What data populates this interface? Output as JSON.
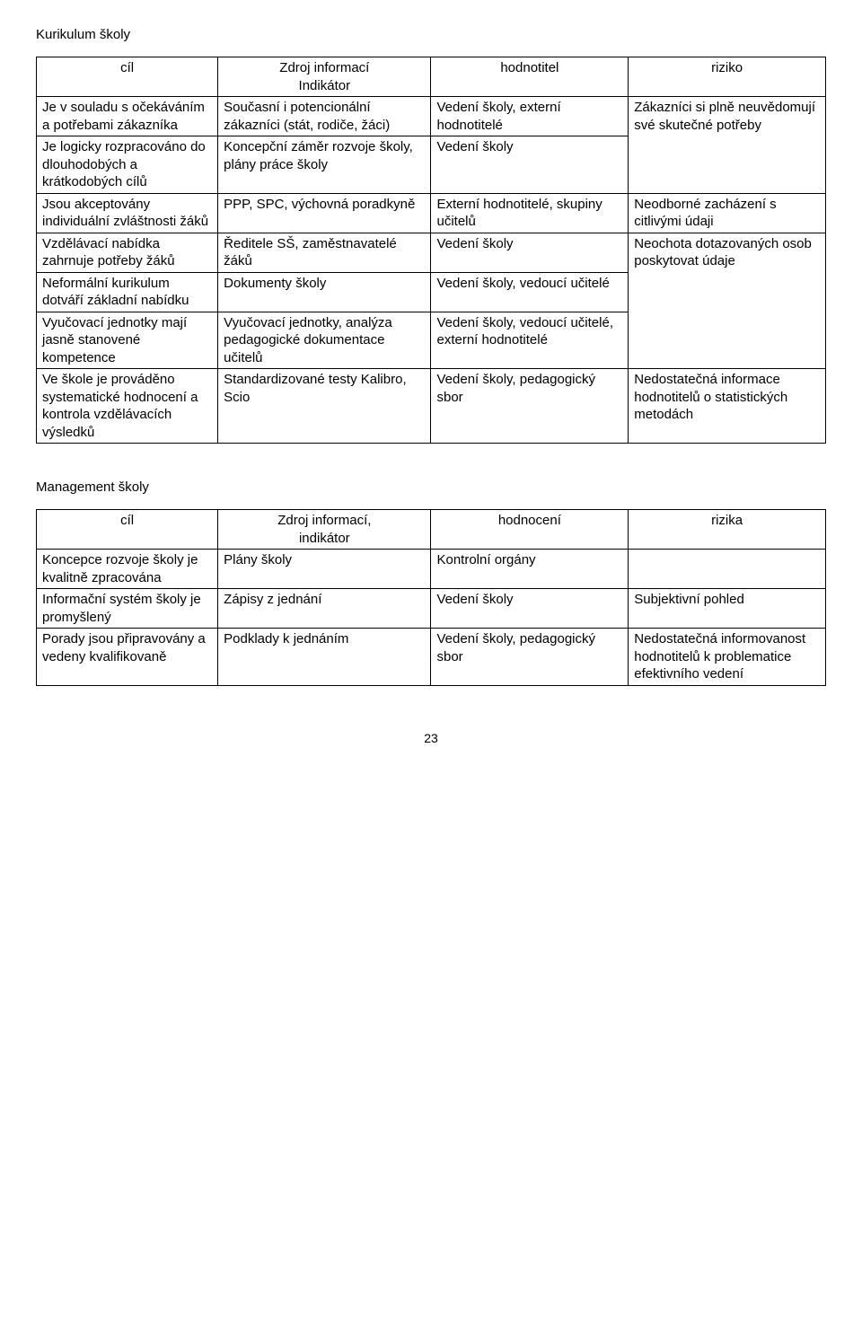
{
  "section1": {
    "title": "Kurikulum školy",
    "headers": [
      "cíl",
      "Zdroj informací\nIndikátor",
      "hodnotitel",
      "riziko"
    ],
    "rows": [
      {
        "c1": "Je v souladu s očekáváním a potřebami zákazníka",
        "c2": "Současní i potencionální zákazníci (stát, rodiče, žáci)",
        "c3": "Vedení školy, externí hodnotitelé",
        "c4": "Zákazníci si plně neuvědomují své skutečné potřeby"
      },
      {
        "c1": "Je logicky rozpracováno do dlouhodobých a krátkodobých cílů",
        "c2": "Koncepční záměr rozvoje školy, plány práce školy",
        "c3": "Vedení školy",
        "c4": ""
      },
      {
        "c1": "Jsou akceptovány individuální zvláštnosti žáků",
        "c2": "PPP, SPC, výchovná poradkyně",
        "c3": "Externí hodnotitelé, skupiny učitelů",
        "c4": "Neodborné zacházení s citlivými údaji"
      },
      {
        "c1": "Vzdělávací nabídka zahrnuje potřeby žáků",
        "c2": "Ředitele SŠ, zaměstnavatelé žáků",
        "c3": "Vedení školy",
        "c4": "Neochota dotazovaných osob poskytovat údaje"
      },
      {
        "c1": "Neformální kurikulum dotváří základní nabídku",
        "c2": "Dokumenty školy",
        "c3": "Vedení školy, vedoucí učitelé",
        "c4": ""
      },
      {
        "c1": "Vyučovací jednotky mají jasně stanovené kompetence",
        "c2": "Vyučovací jednotky, analýza pedagogické dokumentace učitelů",
        "c3": "Vedení školy, vedoucí učitelé, externí hodnotitelé",
        "c4": ""
      },
      {
        "c1": "Ve škole je prováděno systematické hodnocení a kontrola vzdělávacích výsledků",
        "c2": "Standardizované testy Kalibro, Scio",
        "c3": "Vedení školy, pedagogický sbor",
        "c4": "Nedostatečná informace hodnotitelů o statistických metodách"
      }
    ],
    "merge4_into_prev": [
      false,
      true,
      false,
      false,
      true,
      true,
      false
    ]
  },
  "section2": {
    "title": "Management školy",
    "headers": [
      "cíl",
      "Zdroj informací,\nindikátor",
      "hodnocení",
      "rizika"
    ],
    "rows": [
      {
        "c1": "Koncepce rozvoje školy je kvalitně zpracována",
        "c2": "Plány školy",
        "c3": "Kontrolní orgány",
        "c4": ""
      },
      {
        "c1": "Informační systém školy je promyšlený",
        "c2": "Zápisy z jednání",
        "c3": "Vedení školy",
        "c4": "Subjektivní pohled"
      },
      {
        "c1": "Porady jsou připravovány a vedeny kvalifikovaně",
        "c2": "Podklady k jednáním",
        "c3": "Vedení školy, pedagogický sbor",
        "c4": "Nedostatečná informovanost hodnotitelů k problematice efektivního vedení"
      }
    ]
  },
  "page_number": "23"
}
